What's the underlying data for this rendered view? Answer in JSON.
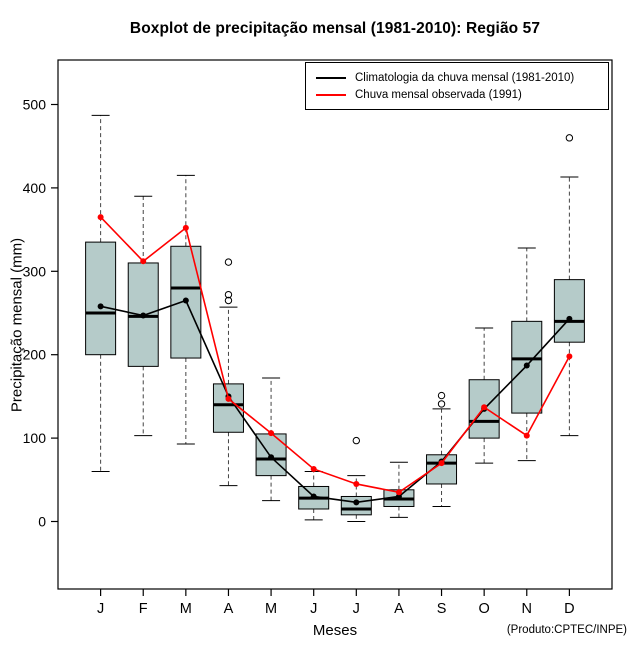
{
  "chart_data": {
    "type": "boxplot",
    "title": "Boxplot de precipitação mensal (1981-2010): Região 57",
    "xlabel": "Meses",
    "ylabel": "Precipitação mensal (mm)",
    "credit": "(Produto:CPTEC/INPE)",
    "ylim": [
      -80,
      553
    ],
    "yticks": [
      0,
      100,
      200,
      300,
      400,
      500
    ],
    "grid": false,
    "legend_position": "top-right",
    "box_fill": "#b5cbc9",
    "categories": [
      "J",
      "F",
      "M",
      "A",
      "M",
      "J",
      "J",
      "A",
      "S",
      "O",
      "N",
      "D"
    ],
    "boxes": [
      {
        "low": 60,
        "q1": 200,
        "med": 250,
        "q3": 335,
        "high": 487,
        "outliers": []
      },
      {
        "low": 103,
        "q1": 186,
        "med": 246,
        "q3": 310,
        "high": 390,
        "outliers": []
      },
      {
        "low": 93,
        "q1": 196,
        "med": 280,
        "q3": 330,
        "high": 415,
        "outliers": []
      },
      {
        "low": 43,
        "q1": 107,
        "med": 140,
        "q3": 165,
        "high": 257,
        "outliers": [
          265,
          272,
          311
        ]
      },
      {
        "low": 25,
        "q1": 55,
        "med": 75,
        "q3": 105,
        "high": 172,
        "outliers": []
      },
      {
        "low": 2,
        "q1": 15,
        "med": 28,
        "q3": 42,
        "high": 60,
        "outliers": []
      },
      {
        "low": 0,
        "q1": 8,
        "med": 15,
        "q3": 30,
        "high": 55,
        "outliers": [
          97
        ]
      },
      {
        "low": 5,
        "q1": 18,
        "med": 27,
        "q3": 38,
        "high": 71,
        "outliers": []
      },
      {
        "low": 18,
        "q1": 45,
        "med": 70,
        "q3": 80,
        "high": 135,
        "outliers": [
          141,
          151
        ]
      },
      {
        "low": 70,
        "q1": 100,
        "med": 120,
        "q3": 170,
        "high": 232,
        "outliers": []
      },
      {
        "low": 73,
        "q1": 130,
        "med": 195,
        "q3": 240,
        "high": 328,
        "outliers": []
      },
      {
        "low": 103,
        "q1": 215,
        "med": 240,
        "q3": 290,
        "high": 413,
        "outliers": [
          460
        ]
      }
    ],
    "series": [
      {
        "name": "Climatologia da chuva mensal (1981-2010)",
        "color": "#000000",
        "values": [
          258,
          247,
          265,
          150,
          77,
          30,
          23,
          30,
          72,
          135,
          187,
          243
        ]
      },
      {
        "name": "Chuva mensal observada (1991)",
        "color": "#ff0000",
        "values": [
          365,
          312,
          352,
          147,
          106,
          63,
          45,
          35,
          70,
          137,
          103,
          198
        ]
      }
    ]
  }
}
